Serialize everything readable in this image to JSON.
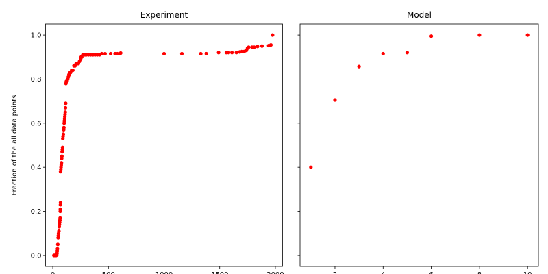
{
  "colors": {
    "points": "#ff0000",
    "axes": "#000000",
    "background": "#ffffff"
  },
  "chart_data": [
    {
      "type": "scatter",
      "title": "Experiment",
      "xlabel": "",
      "ylabel": "Fraction of the all data points",
      "xlim": [
        -65,
        2065
      ],
      "ylim": [
        -0.05,
        1.05
      ],
      "xticks": [
        0,
        500,
        1000,
        1500,
        2000
      ],
      "yticks": [
        0.0,
        0.2,
        0.4,
        0.6,
        0.8,
        1.0
      ],
      "ytick_labels": [
        "0.0",
        "0.2",
        "0.4",
        "0.6",
        "0.8",
        "1.0"
      ],
      "grid": false,
      "marker_color": "#ff0000",
      "points": [
        [
          10,
          0.0
        ],
        [
          15,
          0.0
        ],
        [
          20,
          0.0
        ],
        [
          25,
          0.0
        ],
        [
          30,
          0.0
        ],
        [
          35,
          0.003
        ],
        [
          38,
          0.01
        ],
        [
          40,
          0.02
        ],
        [
          42,
          0.03
        ],
        [
          45,
          0.05
        ],
        [
          48,
          0.08
        ],
        [
          50,
          0.09
        ],
        [
          52,
          0.1
        ],
        [
          55,
          0.11
        ],
        [
          58,
          0.13
        ],
        [
          60,
          0.14
        ],
        [
          62,
          0.15
        ],
        [
          64,
          0.16
        ],
        [
          66,
          0.17
        ],
        [
          67,
          0.2
        ],
        [
          68,
          0.21
        ],
        [
          69,
          0.23
        ],
        [
          70,
          0.24
        ],
        [
          70,
          0.38
        ],
        [
          72,
          0.39
        ],
        [
          74,
          0.4
        ],
        [
          76,
          0.41
        ],
        [
          78,
          0.42
        ],
        [
          80,
          0.44
        ],
        [
          82,
          0.45
        ],
        [
          84,
          0.47
        ],
        [
          86,
          0.48
        ],
        [
          88,
          0.49
        ],
        [
          90,
          0.53
        ],
        [
          92,
          0.54
        ],
        [
          95,
          0.55
        ],
        [
          98,
          0.57
        ],
        [
          100,
          0.58
        ],
        [
          102,
          0.6
        ],
        [
          104,
          0.61
        ],
        [
          106,
          0.62
        ],
        [
          108,
          0.63
        ],
        [
          110,
          0.64
        ],
        [
          112,
          0.65
        ],
        [
          114,
          0.67
        ],
        [
          116,
          0.69
        ],
        [
          118,
          0.78
        ],
        [
          122,
          0.79
        ],
        [
          128,
          0.79
        ],
        [
          135,
          0.8
        ],
        [
          140,
          0.81
        ],
        [
          145,
          0.82
        ],
        [
          150,
          0.82
        ],
        [
          155,
          0.83
        ],
        [
          160,
          0.83
        ],
        [
          170,
          0.84
        ],
        [
          180,
          0.84
        ],
        [
          190,
          0.86
        ],
        [
          200,
          0.86
        ],
        [
          210,
          0.87
        ],
        [
          220,
          0.87
        ],
        [
          230,
          0.87
        ],
        [
          240,
          0.88
        ],
        [
          250,
          0.89
        ],
        [
          255,
          0.9
        ],
        [
          260,
          0.9
        ],
        [
          270,
          0.91
        ],
        [
          280,
          0.91
        ],
        [
          290,
          0.91
        ],
        [
          300,
          0.91
        ],
        [
          320,
          0.91
        ],
        [
          340,
          0.91
        ],
        [
          360,
          0.91
        ],
        [
          380,
          0.91
        ],
        [
          400,
          0.91
        ],
        [
          420,
          0.91
        ],
        [
          440,
          0.915
        ],
        [
          470,
          0.915
        ],
        [
          520,
          0.915
        ],
        [
          560,
          0.915
        ],
        [
          580,
          0.915
        ],
        [
          600,
          0.915
        ],
        [
          610,
          0.918
        ],
        [
          1000,
          0.915
        ],
        [
          1160,
          0.915
        ],
        [
          1330,
          0.915
        ],
        [
          1380,
          0.915
        ],
        [
          1490,
          0.92
        ],
        [
          1560,
          0.92
        ],
        [
          1580,
          0.92
        ],
        [
          1610,
          0.92
        ],
        [
          1650,
          0.92
        ],
        [
          1680,
          0.923
        ],
        [
          1700,
          0.925
        ],
        [
          1720,
          0.925
        ],
        [
          1740,
          0.93
        ],
        [
          1750,
          0.94
        ],
        [
          1760,
          0.945
        ],
        [
          1790,
          0.945
        ],
        [
          1810,
          0.945
        ],
        [
          1840,
          0.948
        ],
        [
          1880,
          0.95
        ],
        [
          1940,
          0.952
        ],
        [
          1960,
          0.955
        ],
        [
          1975,
          1.0
        ]
      ]
    },
    {
      "type": "scatter",
      "title": "Model",
      "xlabel": "",
      "ylabel": "",
      "xlim": [
        0.55,
        10.45
      ],
      "ylim": [
        -0.05,
        1.05
      ],
      "xticks": [
        2,
        4,
        6,
        8,
        10
      ],
      "yticks": [
        0.0,
        0.2,
        0.4,
        0.6,
        0.8,
        1.0
      ],
      "ytick_labels": [],
      "grid": false,
      "marker_color": "#ff0000",
      "points": [
        [
          1,
          0.4
        ],
        [
          2,
          0.705
        ],
        [
          3,
          0.857
        ],
        [
          4,
          0.915
        ],
        [
          5,
          0.92
        ],
        [
          6,
          0.995
        ],
        [
          8,
          1.0
        ],
        [
          10,
          1.0
        ]
      ]
    }
  ]
}
